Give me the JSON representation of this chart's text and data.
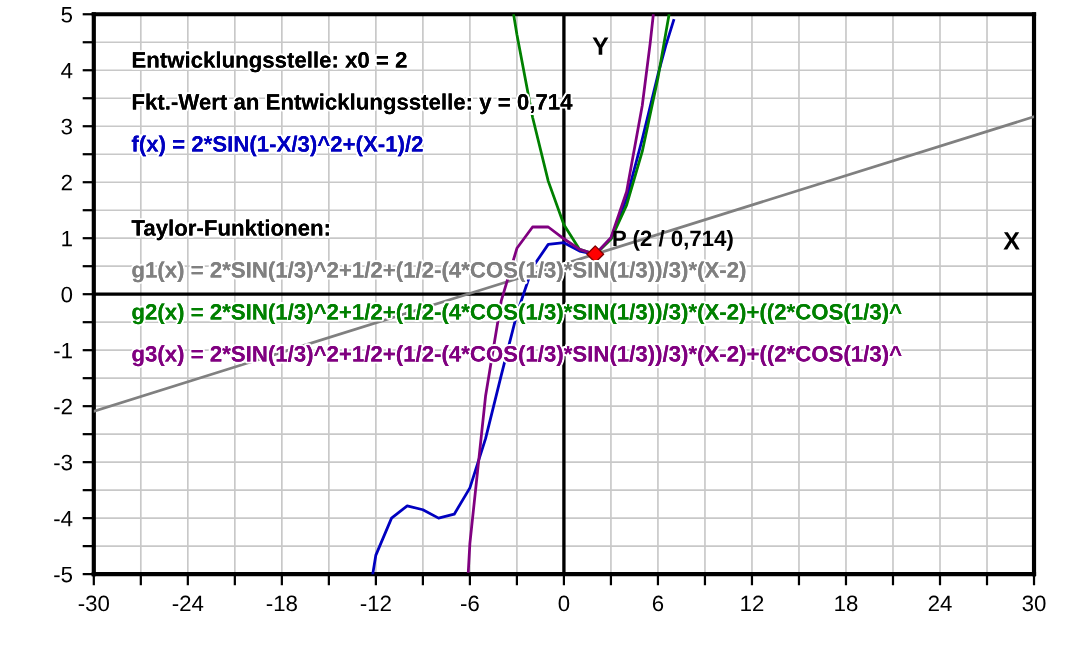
{
  "chart_data": {
    "type": "line",
    "xlabel": "X",
    "ylabel": "Y",
    "xlim": [
      -30,
      30
    ],
    "ylim": [
      -5,
      5
    ],
    "xticks": [
      -30,
      {
        "value": -27,
        "label": null
      },
      -24,
      {
        "value": -21,
        "label": null
      },
      -18,
      {
        "value": -15,
        "label": null
      },
      -12,
      {
        "value": -9,
        "label": null
      },
      -6,
      {
        "value": -3,
        "label": null
      },
      0,
      {
        "value": 3,
        "label": null
      },
      6,
      {
        "value": 9,
        "label": null
      },
      12,
      {
        "value": 15,
        "label": null
      },
      18,
      {
        "value": 21,
        "label": null
      },
      24,
      {
        "value": 27,
        "label": null
      },
      30
    ],
    "yticks": [
      -5,
      {
        "value": -4.5,
        "label": null
      },
      -4,
      {
        "value": -3.5,
        "label": null
      },
      -3,
      {
        "value": -2.5,
        "label": null
      },
      -2,
      {
        "value": -1.5,
        "label": null
      },
      -1,
      {
        "value": -0.5,
        "label": null
      },
      0,
      {
        "value": 0.5,
        "label": null
      },
      1,
      {
        "value": 1.5,
        "label": null
      },
      2,
      {
        "value": 2.5,
        "label": null
      },
      3,
      {
        "value": 3.5,
        "label": null
      },
      4,
      {
        "value": 4.5,
        "label": null
      },
      5
    ],
    "grid": true,
    "legend": false,
    "marker": "none",
    "line_style": "solid",
    "annotations": [
      "Entwicklungsstelle: x0 = 2",
      "Fkt.-Wert an Entwicklungsstelle: y = 0,714",
      "Taylor-Funktionen:",
      {
        "text": "P (2 / 0,714)",
        "x": 2,
        "y": 0.714
      }
    ],
    "series": [
      {
        "name": "f(x) = 2*SIN(1-X/3)^2+(X-1)/2",
        "color": "#0000c0",
        "x": [
          -12.2,
          -12,
          -11,
          -10,
          -9,
          -8,
          -7,
          -6,
          -5,
          -4,
          -3,
          -2,
          -1,
          0,
          1,
          2,
          3,
          4,
          5,
          6,
          6.5,
          7
        ],
        "values": [
          -5.0,
          -4.66,
          -4.0,
          -3.78,
          -3.85,
          -4.0,
          -3.93,
          -3.46,
          -2.58,
          -1.45,
          -0.35,
          0.48,
          0.89,
          0.92,
          0.77,
          0.71,
          1.0,
          1.71,
          2.77,
          3.92,
          4.44,
          4.89
        ]
      },
      {
        "name": "g1(x) = 2*SIN(1/3)^2+1/2+(1/2-(4*COS(1/3)*SIN(1/3))/3)*(X-2)",
        "color": "#808080",
        "x": [
          -30,
          30
        ],
        "values": [
          -2.09,
          3.17
        ]
      },
      {
        "name": "g2(x) = 2*SIN(1/3)^2+1/2+(1/2-(4*COS(1/3)*SIN(1/3))/3)*(X-2)+((2*COS(1/3)^",
        "color": "#008000",
        "x": [
          -3.2,
          -3,
          -2,
          -1,
          0,
          1,
          2,
          3,
          4,
          5,
          6,
          6.7
        ],
        "values": [
          4.98,
          4.64,
          3.16,
          2.02,
          1.24,
          0.8,
          0.71,
          0.98,
          1.59,
          2.55,
          3.86,
          4.98
        ]
      },
      {
        "name": "g3(x) = 2*SIN(1/3)^2+1/2+(1/2-(4*COS(1/3)*SIN(1/3))/3)*(X-2)+((2*COS(1/3)^",
        "color": "#800080",
        "x": [
          -6.1,
          -6,
          -5,
          -4,
          -3,
          -2,
          -1,
          0,
          1,
          2,
          3,
          4,
          5,
          5.5,
          5.7
        ],
        "values": [
          -4.95,
          -4.45,
          -1.82,
          -0.12,
          0.82,
          1.2,
          1.2,
          0.99,
          0.8,
          0.71,
          1.01,
          1.83,
          3.37,
          4.47,
          4.98
        ]
      },
      {
        "type": "scatter",
        "marker": "diamond",
        "color": "#ff0000",
        "x": [
          2
        ],
        "values": [
          0.714
        ]
      }
    ]
  }
}
